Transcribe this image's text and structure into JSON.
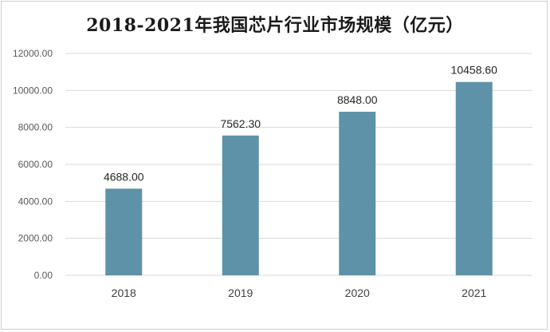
{
  "chart_data": {
    "type": "bar",
    "title": "2018-2021年我国芯片行业市场规模（亿元）",
    "categories": [
      "2018",
      "2019",
      "2020",
      "2021"
    ],
    "values": [
      4688.0,
      7562.3,
      8848.0,
      10458.6
    ],
    "data_labels": [
      "4688.00",
      "7562.30",
      "8848.00",
      "10458.60"
    ],
    "y_ticks": [
      "0.00",
      "2000.00",
      "4000.00",
      "6000.00",
      "8000.00",
      "10000.00",
      "12000.00"
    ],
    "ylim": [
      0,
      12000
    ],
    "xlabel": "",
    "ylabel": "",
    "grid": true,
    "legend": "none",
    "bar_color": "#5e92a8",
    "grid_color": "#d9d9d9"
  }
}
